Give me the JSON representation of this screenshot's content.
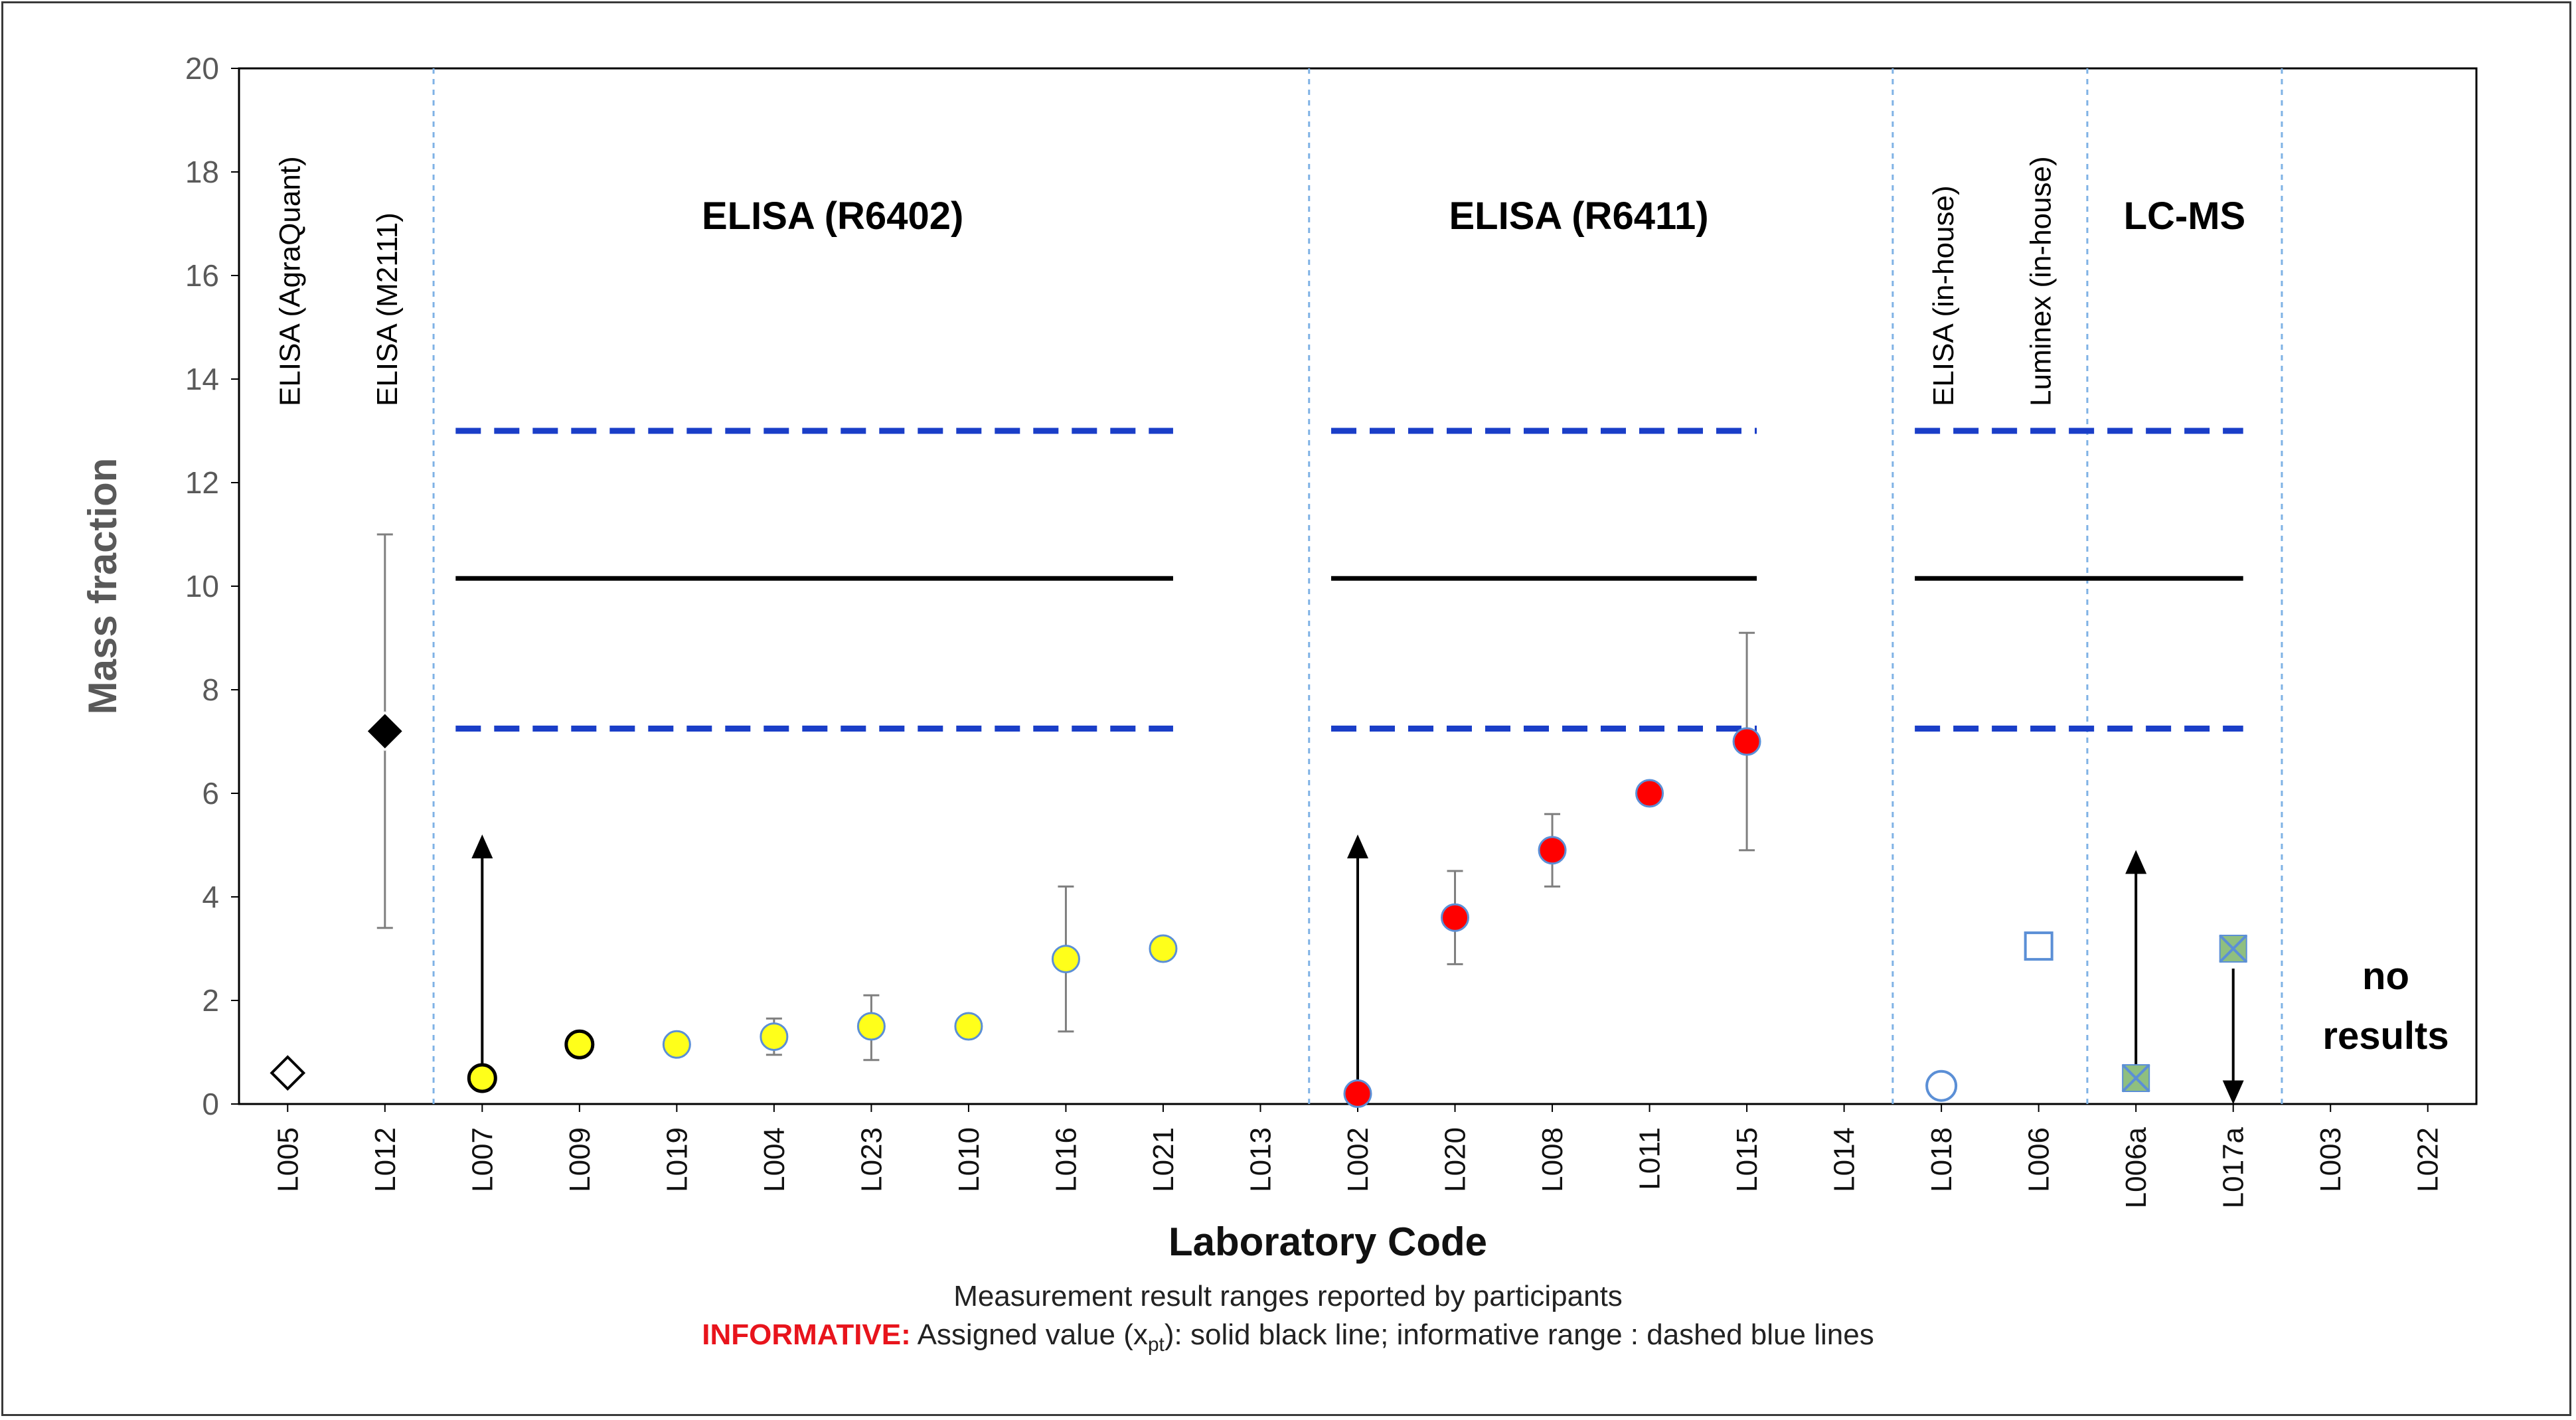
{
  "chart_data": {
    "type": "scatter",
    "ylabel": "Mass fraction",
    "xlabel": "Laboratory Code",
    "ylim": [
      0,
      20
    ],
    "yticks": [
      0,
      2,
      4,
      6,
      8,
      10,
      12,
      14,
      16,
      18,
      20
    ],
    "categories": [
      "L005",
      "L012",
      "L007",
      "L009",
      "L019",
      "L004",
      "L023",
      "L010",
      "L016",
      "L021",
      "L013",
      "L002",
      "L020",
      "L008",
      "L011",
      "L015",
      "L014",
      "L018",
      "L006",
      "L006a",
      "L017a",
      "L003",
      "L022"
    ],
    "group_labels": [
      {
        "text": "ELISA (AgraQuant)",
        "vertical": true
      },
      {
        "text": "ELISA (M2111)",
        "vertical": true
      },
      {
        "text": "ELISA (R6402)",
        "vertical": false
      },
      {
        "text": "ELISA (R6411)",
        "vertical": false
      },
      {
        "text": "ELISA (in-house)",
        "vertical": true
      },
      {
        "text": "Luminex (in-house)",
        "vertical": true
      },
      {
        "text": "LC-MS",
        "vertical": false
      }
    ],
    "no_results_label": [
      "no",
      "results"
    ],
    "assigned_value": 10.15,
    "range_upper": 13.0,
    "range_lower": 7.25,
    "reference_line_spans": [
      {
        "from": "L007",
        "to": "L021"
      },
      {
        "from": "L002",
        "to": "L015"
      },
      {
        "from": "L018",
        "to": "L017a"
      }
    ],
    "points": [
      {
        "lab": "L005",
        "value": 0.6,
        "err_low": 0.45,
        "err_high": 0.75,
        "marker": "diamond-open"
      },
      {
        "lab": "L012",
        "value": 7.2,
        "err_low": 3.4,
        "err_high": 11.0,
        "marker": "diamond-filled"
      },
      {
        "lab": "L007",
        "value": 0.5,
        "marker": "circle-yellow-dark",
        "arrow": "up",
        "arrow_to": 5.0
      },
      {
        "lab": "L009",
        "value": 1.15,
        "marker": "circle-yellow-dark"
      },
      {
        "lab": "L019",
        "value": 1.15,
        "marker": "circle-yellow"
      },
      {
        "lab": "L004",
        "value": 1.3,
        "err_low": 0.95,
        "err_high": 1.65,
        "marker": "circle-yellow"
      },
      {
        "lab": "L023",
        "value": 1.5,
        "err_low": 0.85,
        "err_high": 2.1,
        "marker": "circle-yellow"
      },
      {
        "lab": "L010",
        "value": 1.5,
        "marker": "circle-yellow"
      },
      {
        "lab": "L016",
        "value": 2.8,
        "err_low": 1.4,
        "err_high": 4.2,
        "marker": "circle-yellow"
      },
      {
        "lab": "L021",
        "value": 3.0,
        "marker": "circle-yellow"
      },
      {
        "lab": "L002",
        "value": 0.2,
        "marker": "circle-red",
        "arrow": "up",
        "arrow_to": 5.0
      },
      {
        "lab": "L020",
        "value": 3.6,
        "err_low": 2.7,
        "err_high": 4.5,
        "marker": "circle-red"
      },
      {
        "lab": "L008",
        "value": 4.9,
        "err_low": 4.2,
        "err_high": 5.6,
        "marker": "circle-red"
      },
      {
        "lab": "L011",
        "value": 6.0,
        "marker": "circle-red"
      },
      {
        "lab": "L015",
        "value": 7.0,
        "err_low": 4.9,
        "err_high": 9.1,
        "marker": "circle-red"
      },
      {
        "lab": "L018",
        "value": 0.35,
        "marker": "circle-open-blue"
      },
      {
        "lab": "L006",
        "value": 3.05,
        "marker": "square-open-blue"
      },
      {
        "lab": "L006a",
        "value": 0.5,
        "marker": "square-x-green",
        "arrow": "up",
        "arrow_to": 4.7
      },
      {
        "lab": "L017a",
        "value": 3.0,
        "marker": "square-x-green",
        "arrow": "down",
        "arrow_to": 0.2
      }
    ]
  },
  "captions": {
    "line1": "Measurement result ranges reported by participants",
    "informative": "INFORMATIVE:",
    "line2_prefix": "Assigned value (x",
    "line2_sub": "pt",
    "line2_suffix": "): solid black line; informative range : dashed blue lines"
  },
  "colors": {
    "assigned_line": "#000000",
    "range_line": "#1a3ec8",
    "separator": "#7fb2e5",
    "yellow": "#ffff1a",
    "red": "#ff0000",
    "marker_outline": "#5b8fd6",
    "green": "#8fbf7f",
    "grey": "#595959",
    "informative_text": "#e8141c"
  }
}
